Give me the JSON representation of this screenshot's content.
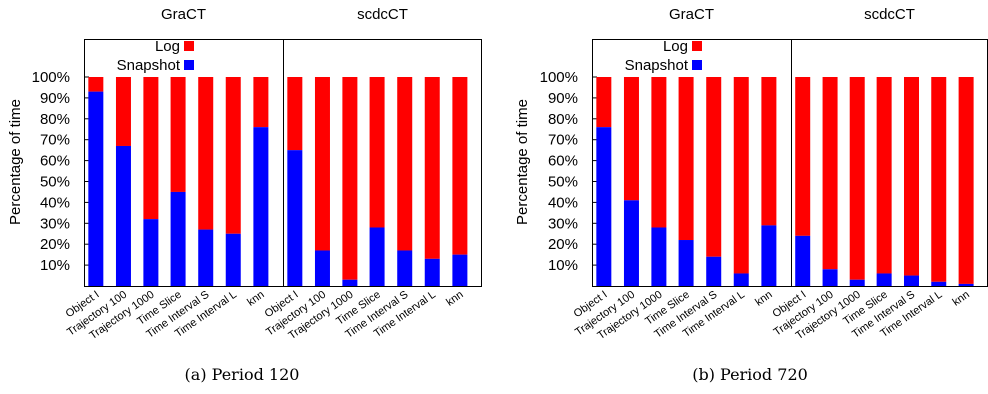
{
  "colors": {
    "log": "#ff0000",
    "snapshot": "#0000ff",
    "axis": "#000000",
    "background": "#ffffff"
  },
  "chart_data": [
    {
      "type": "bar",
      "stacked": true,
      "caption": "(a)  Period 120",
      "ylabel": "Percentage of time",
      "ylim": [
        0,
        100
      ],
      "yticks": [
        "10%",
        "20%",
        "30%",
        "40%",
        "50%",
        "60%",
        "70%",
        "80%",
        "90%",
        "100%"
      ],
      "legend": {
        "placement": "top-left",
        "entries": [
          "Log",
          "Snapshot"
        ]
      },
      "grid": false,
      "panels": [
        {
          "title": "GraCT",
          "categories": [
            "Object I",
            "Trajectory 100",
            "Trajectory 1000",
            "Time Slice",
            "Time Interval S",
            "Time Interval L",
            "knn"
          ],
          "series": [
            {
              "name": "Snapshot",
              "values": [
                93,
                67,
                32,
                45,
                27,
                25,
                76
              ]
            },
            {
              "name": "Log",
              "values": [
                7,
                33,
                68,
                55,
                73,
                75,
                24
              ]
            }
          ]
        },
        {
          "title": "scdcCT",
          "categories": [
            "Object I",
            "Trajectory 100",
            "Trajectory 1000",
            "Time Slice",
            "Time Interval S",
            "Time Interval L",
            "knn"
          ],
          "series": [
            {
              "name": "Snapshot",
              "values": [
                65,
                17,
                3,
                28,
                17,
                13,
                15
              ]
            },
            {
              "name": "Log",
              "values": [
                35,
                83,
                97,
                72,
                83,
                87,
                85
              ]
            }
          ]
        }
      ]
    },
    {
      "type": "bar",
      "stacked": true,
      "caption": "(b)  Period 720",
      "ylabel": "Percentage of time",
      "ylim": [
        0,
        100
      ],
      "yticks": [
        "10%",
        "20%",
        "30%",
        "40%",
        "50%",
        "60%",
        "70%",
        "80%",
        "90%",
        "100%"
      ],
      "legend": {
        "placement": "top-left",
        "entries": [
          "Log",
          "Snapshot"
        ]
      },
      "grid": false,
      "panels": [
        {
          "title": "GraCT",
          "categories": [
            "Object I",
            "Trajectory 100",
            "Trajectory 1000",
            "Time Slice",
            "Time Interval S",
            "Time Interval L",
            "knn"
          ],
          "series": [
            {
              "name": "Snapshot",
              "values": [
                76,
                41,
                28,
                22,
                14,
                6,
                29
              ]
            },
            {
              "name": "Log",
              "values": [
                24,
                59,
                72,
                78,
                86,
                94,
                71
              ]
            }
          ]
        },
        {
          "title": "scdcCT",
          "categories": [
            "Object I",
            "Trajectory 100",
            "Trajectory 1000",
            "Time Slice",
            "Time Interval S",
            "Time Interval L",
            "knn"
          ],
          "series": [
            {
              "name": "Snapshot",
              "values": [
                24,
                8,
                3,
                6,
                5,
                2,
                1
              ]
            },
            {
              "name": "Log",
              "values": [
                76,
                92,
                97,
                94,
                95,
                98,
                99
              ]
            }
          ]
        }
      ]
    }
  ]
}
